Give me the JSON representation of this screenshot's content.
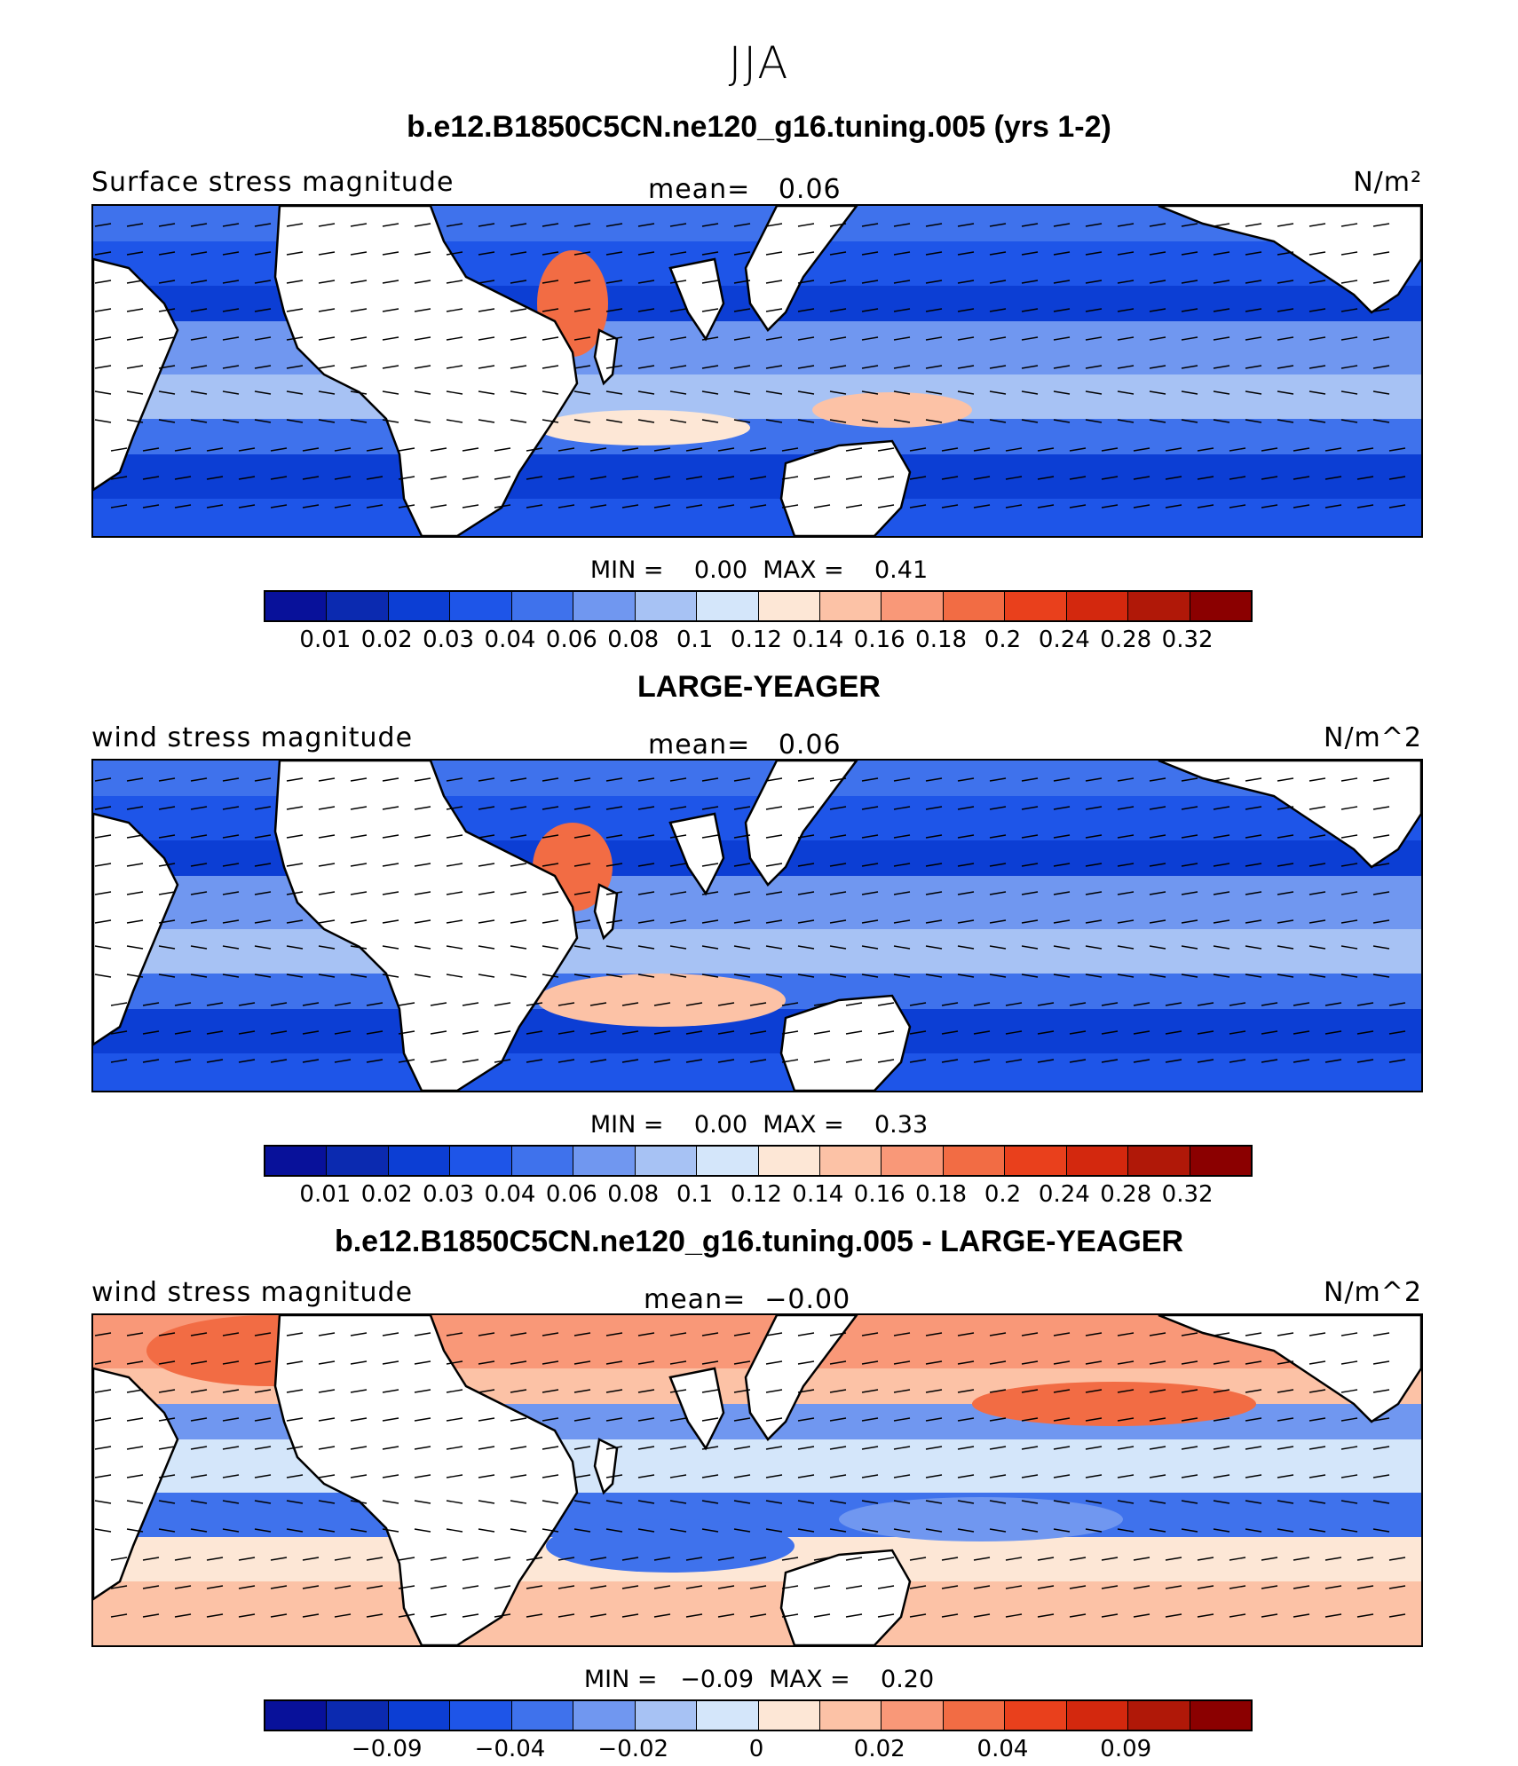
{
  "season": "JJA",
  "colors": {
    "scale": [
      "#08119a",
      "#0b2ab0",
      "#0c3ed4",
      "#1e55e8",
      "#3f72ec",
      "#7097f0",
      "#a7c2f4",
      "#d4e6fa",
      "#fde7d6",
      "#fcc2a6",
      "#f99878",
      "#f26c44",
      "#e9401c",
      "#d3280e",
      "#b01808",
      "#8b0000"
    ]
  },
  "panels": [
    {
      "title": "b.e12.B1850C5CN.ne120_g16.tuning.005 (yrs 1-2)",
      "left_label": "Surface stress magnitude",
      "mean_label": "mean=",
      "mean_value": "0.06",
      "units": "N/m²",
      "min_label": "MIN =",
      "min_value": "0.00",
      "max_label": "MAX =",
      "max_value": "0.41",
      "ticks": [
        "0.01",
        "0.02",
        "0.03",
        "0.04",
        "0.06",
        "0.08",
        "0.1",
        "0.12",
        "0.14",
        "0.16",
        "0.18",
        "0.2",
        "0.24",
        "0.28",
        "0.32"
      ],
      "tick_mode": "all"
    },
    {
      "title": "LARGE-YEAGER",
      "left_label": "wind stress magnitude",
      "mean_label": "mean=",
      "mean_value": "0.06",
      "units": "N/m^2",
      "min_label": "MIN =",
      "min_value": "0.00",
      "max_label": "MAX =",
      "max_value": "0.33",
      "ticks": [
        "0.01",
        "0.02",
        "0.03",
        "0.04",
        "0.06",
        "0.08",
        "0.1",
        "0.12",
        "0.14",
        "0.16",
        "0.18",
        "0.2",
        "0.24",
        "0.28",
        "0.32"
      ],
      "tick_mode": "all"
    },
    {
      "title": "b.e12.B1850C5CN.ne120_g16.tuning.005 - LARGE-YEAGER",
      "left_label": "wind stress magnitude",
      "mean_label": "mean=",
      "mean_value": "−0.00",
      "units": "N/m^2",
      "min_label": "MIN =",
      "min_value": "−0.09",
      "max_label": "MAX =",
      "max_value": "0.20",
      "ticks": [
        "−0.09",
        "−0.04",
        "−0.02",
        "0",
        "0.02",
        "0.04",
        "0.09"
      ],
      "tick_mode": "sparse"
    }
  ]
}
